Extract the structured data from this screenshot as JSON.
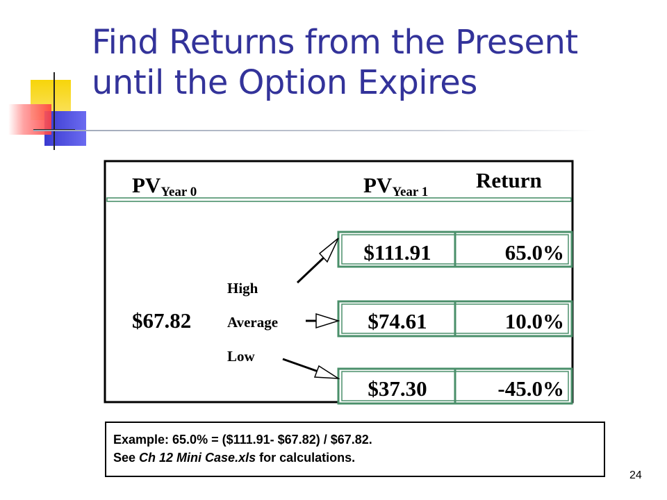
{
  "slide": {
    "title_line1": "Find Returns from the Present",
    "title_line2": "until the Option Expires",
    "page_number": "24"
  },
  "table": {
    "pv0_label": "PV",
    "pv0_sub": "Year 0",
    "pv1_label": "PV",
    "pv1_sub": "Year 1",
    "return_header": "Return",
    "pv0_value": "$67.82",
    "scenarios": [
      {
        "label": "High",
        "pv": "$111.91",
        "ret": "65.0%"
      },
      {
        "label": "Average",
        "pv": "$74.61",
        "ret": "10.0%"
      },
      {
        "label": "Low",
        "pv": "$37.30",
        "ret": "-45.0%"
      }
    ]
  },
  "note": {
    "line1": "Example: 65.0% = ($111.91- $67.82) / $67.82.",
    "line2_prefix": "See ",
    "line2_file": "Ch 12 Mini Case.xls",
    "line2_suffix": " for calculations."
  },
  "colors": {
    "title": "#33339a",
    "cell_border": "#4a8f6a",
    "deco_yellow": "#f7d50a",
    "deco_blue": "#3a3ad0",
    "deco_red": "#ff4040"
  }
}
